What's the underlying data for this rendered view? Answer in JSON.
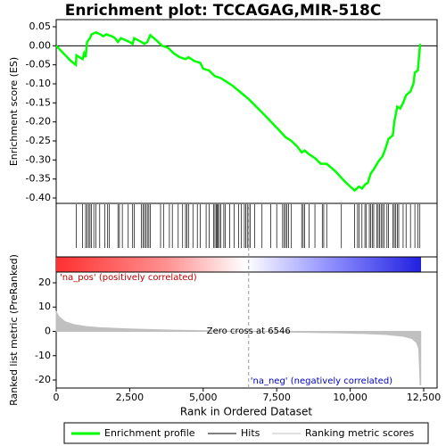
{
  "chart_data": [
    {
      "type": "line",
      "title": "Enrichment plot: TCCAGAG,MIR-518C",
      "ylabel": "Enrichment score (ES)",
      "series": [
        {
          "name": "Enrichment profile",
          "color": "#00ff00",
          "x": [
            0,
            500,
            670,
            690,
            900,
            950,
            1000,
            1050,
            1150,
            1200,
            1350,
            1500,
            1600,
            1700,
            1900,
            2000,
            2100,
            2200,
            2500,
            2600,
            2650,
            2900,
            3000,
            3100,
            3200,
            3400,
            3600,
            3800,
            4000,
            4200,
            4400,
            4500,
            4700,
            4900,
            5000,
            5200,
            5400,
            5600,
            5800,
            6000,
            6546,
            7000,
            7500,
            7800,
            8000,
            8200,
            8350,
            8450,
            8600,
            8800,
            9000,
            9200,
            9500,
            9800,
            10000,
            10150,
            10300,
            10400,
            10500,
            10600,
            10700,
            10800,
            10950,
            11100,
            11200,
            11300,
            11450,
            11500,
            11600,
            11700,
            11800,
            11900,
            12050,
            12150,
            12200,
            12300,
            12380
          ],
          "values": [
            0,
            -0.04,
            -0.05,
            -0.025,
            -0.035,
            -0.02,
            -0.03,
            0.01,
            0.02,
            0.03,
            0.035,
            0.03,
            0.025,
            0.03,
            0.025,
            0.02,
            0.01,
            0.02,
            0.01,
            0.005,
            0.02,
            0.01,
            0.005,
            0.01,
            0.028,
            0.015,
            0,
            -0.005,
            -0.02,
            -0.03,
            -0.035,
            -0.03,
            -0.04,
            -0.045,
            -0.06,
            -0.065,
            -0.08,
            -0.085,
            -0.095,
            -0.105,
            -0.14,
            -0.175,
            -0.215,
            -0.24,
            -0.25,
            -0.265,
            -0.28,
            -0.275,
            -0.285,
            -0.295,
            -0.31,
            -0.31,
            -0.33,
            -0.355,
            -0.37,
            -0.38,
            -0.37,
            -0.375,
            -0.365,
            -0.36,
            -0.335,
            -0.325,
            -0.305,
            -0.29,
            -0.27,
            -0.245,
            -0.235,
            -0.2,
            -0.16,
            -0.165,
            -0.15,
            -0.13,
            -0.12,
            -0.1,
            -0.07,
            -0.065,
            0.005
          ]
        }
      ],
      "xlim": [
        0,
        12955
      ],
      "ylim": [
        -0.414,
        0.0687
      ],
      "yticks": [
        {
          "value": 0.05,
          "label": "0.05"
        },
        {
          "value": 0,
          "label": "0.00"
        },
        {
          "value": -0.05,
          "label": "-0.05"
        },
        {
          "value": -0.1,
          "label": "-0.10"
        },
        {
          "value": -0.15,
          "label": "-0.15"
        },
        {
          "value": -0.2,
          "label": "-0.20"
        },
        {
          "value": -0.25,
          "label": "-0.25"
        },
        {
          "value": -0.3,
          "label": "-0.30"
        },
        {
          "value": -0.35,
          "label": "-0.35"
        },
        {
          "value": -0.4,
          "label": "-0.40"
        }
      ]
    },
    {
      "type": "hits",
      "name": "Hits",
      "color": "#000000",
      "xlim": [
        0,
        12955
      ],
      "x": [
        680,
        900,
        1000,
        1050,
        1100,
        1150,
        1200,
        1280,
        1350,
        1480,
        1650,
        1750,
        1800,
        2100,
        2150,
        2250,
        2450,
        2600,
        2650,
        2900,
        2950,
        3000,
        3050,
        3100,
        3150,
        3200,
        3550,
        3650,
        3850,
        3950,
        4150,
        4300,
        4400,
        4450,
        4500,
        4650,
        4800,
        4900,
        5100,
        5200,
        5350,
        5400,
        5450,
        5480,
        5500,
        5550,
        5600,
        5700,
        5750,
        5900,
        6050,
        6200,
        6300,
        6400,
        6450,
        6500,
        6550,
        6600,
        6750,
        7000,
        7300,
        7500,
        7700,
        7750,
        7800,
        7850,
        7900,
        8000,
        8350,
        8400,
        8450,
        8600,
        8800,
        9050,
        9100,
        9200,
        9700,
        10150,
        10250,
        10300,
        10400,
        10500,
        10550,
        10650,
        10700,
        10750,
        10800,
        10900,
        10950,
        11000,
        11050,
        11100,
        11150,
        11250,
        11300,
        11450,
        11500,
        11550,
        11600,
        11650,
        11800,
        11900,
        12050,
        12200,
        12300,
        12370
      ]
    },
    {
      "type": "area",
      "name": "Ranking metric scores",
      "color": "#c0c0c0",
      "ylabel": "Ranked list metric (PreRanked)",
      "xlabel": "Rank in Ordered Dataset",
      "x": [
        0,
        100,
        300,
        600,
        1000,
        1500,
        2500,
        4000,
        5500,
        6546,
        8000,
        9500,
        10500,
        11200,
        11800,
        12100,
        12250,
        12330,
        12380,
        12400
      ],
      "values": [
        8,
        6,
        4,
        2.8,
        2,
        1.5,
        1,
        0.5,
        0.2,
        0,
        -0.3,
        -0.6,
        -0.9,
        -1.3,
        -2,
        -3,
        -4.5,
        -7,
        -22,
        -22
      ],
      "xlim": [
        0,
        12955
      ],
      "ylim": [
        -23.3,
        24.4
      ],
      "xticks": [
        0,
        {
          "value": 2500,
          "label": "2,500"
        },
        {
          "value": 5000,
          "label": "5,000"
        },
        {
          "value": 7500,
          "label": "7,500"
        },
        {
          "value": 10000,
          "label": "10,000"
        },
        {
          "value": 12500,
          "label": "12,500"
        }
      ],
      "yticks": [
        20,
        10,
        0,
        -10,
        -20
      ],
      "zero_cross": 6546,
      "zero_cross_label": "Zero cross at 6546",
      "pos_label": "'na_pos' (positively correlated)",
      "neg_label": "'na_neg' (negatively correlated)"
    }
  ]
}
